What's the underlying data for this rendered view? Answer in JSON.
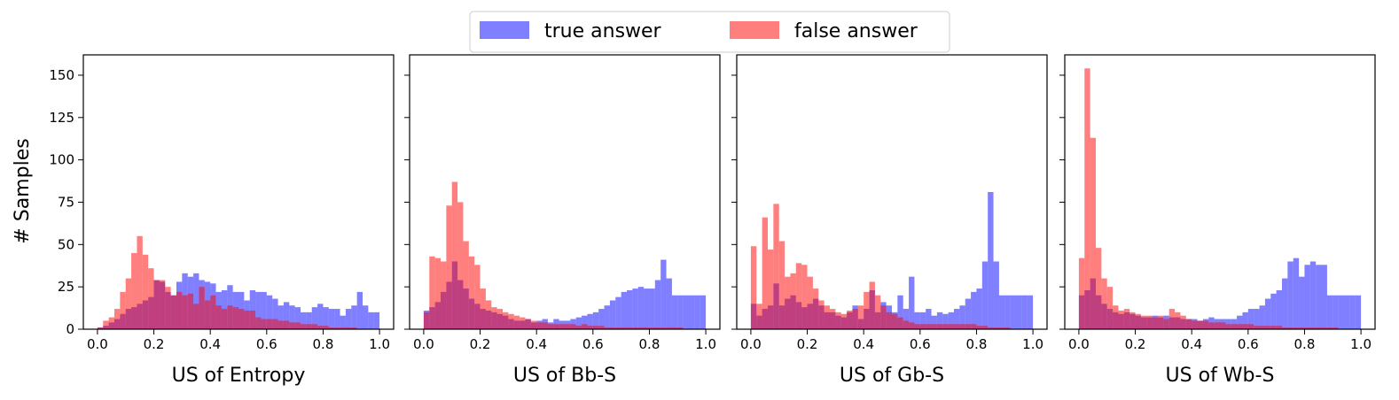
{
  "figure": {
    "ylabel": "# Samples",
    "legend": {
      "placement": "top-center",
      "entries": [
        {
          "label": "true answer",
          "color": "#7f7fff"
        },
        {
          "label": "false answer",
          "color": "#ff7f7f"
        }
      ]
    }
  },
  "chart_data": [
    {
      "type": "bar",
      "xlabel": "US of Entropy",
      "ylabel": "# Samples",
      "xlim": [
        -0.05,
        1.05
      ],
      "ylim": [
        0,
        162
      ],
      "xticks": [
        "0.0",
        "0.2",
        "0.4",
        "0.6",
        "0.8",
        "1.0"
      ],
      "yticks": [
        "0",
        "25",
        "50",
        "75",
        "100",
        "125",
        "150"
      ],
      "bin_start": 0.0,
      "bin_width": 0.02,
      "series": [
        {
          "name": "true answer",
          "color": "#0000ff",
          "opacity": 0.5,
          "values": [
            1,
            2,
            4,
            6,
            9,
            12,
            13,
            15,
            17,
            19,
            29,
            28,
            22,
            20,
            28,
            33,
            31,
            33,
            29,
            28,
            27,
            22,
            23,
            26,
            22,
            22,
            17,
            23,
            22,
            22,
            20,
            18,
            14,
            16,
            14,
            13,
            10,
            10,
            13,
            15,
            13,
            12,
            12,
            8,
            12,
            14,
            22,
            14,
            10,
            10
          ]
        },
        {
          "name": "false answer",
          "color": "#ff0000",
          "opacity": 0.5,
          "values": [
            1,
            5,
            7,
            12,
            22,
            30,
            45,
            55,
            44,
            36,
            29,
            29,
            25,
            20,
            22,
            20,
            21,
            15,
            25,
            17,
            20,
            14,
            12,
            14,
            13,
            12,
            11,
            11,
            7,
            6,
            6,
            6,
            5,
            5,
            4,
            4,
            3,
            3,
            3,
            2,
            2,
            1,
            1,
            1,
            1,
            1,
            0,
            0,
            0,
            0
          ]
        }
      ]
    },
    {
      "type": "bar",
      "xlabel": "US of Bb-S",
      "ylabel": "",
      "xlim": [
        -0.05,
        1.05
      ],
      "ylim": [
        0,
        162
      ],
      "xticks": [
        "0.0",
        "0.2",
        "0.4",
        "0.6",
        "0.8",
        "1.0"
      ],
      "yticks": [
        "0",
        "25",
        "50",
        "75",
        "100",
        "125",
        "150"
      ],
      "bin_start": 0.0,
      "bin_width": 0.02,
      "series": [
        {
          "name": "true answer",
          "color": "#0000ff",
          "opacity": 0.5,
          "values": [
            11,
            13,
            16,
            22,
            28,
            40,
            29,
            24,
            18,
            15,
            12,
            11,
            10,
            9,
            8,
            6,
            5,
            5,
            6,
            4,
            5,
            6,
            4,
            6,
            5,
            5,
            6,
            7,
            8,
            9,
            10,
            12,
            14,
            17,
            19,
            22,
            23,
            24,
            25,
            24,
            24,
            29,
            41,
            30,
            20,
            20,
            20,
            20,
            20,
            20
          ]
        },
        {
          "name": "false answer",
          "color": "#ff0000",
          "opacity": 0.5,
          "values": [
            10,
            43,
            42,
            40,
            73,
            87,
            75,
            52,
            43,
            38,
            24,
            17,
            13,
            12,
            10,
            9,
            8,
            7,
            6,
            5,
            4,
            4,
            3,
            3,
            3,
            3,
            3,
            2,
            3,
            2,
            2,
            2,
            1,
            1,
            1,
            1,
            1,
            1,
            1,
            1,
            1,
            1,
            1,
            1,
            1,
            1,
            0,
            0,
            0,
            0
          ]
        }
      ]
    },
    {
      "type": "bar",
      "xlabel": "US of Gb-S",
      "ylabel": "",
      "xlim": [
        -0.05,
        1.05
      ],
      "ylim": [
        0,
        162
      ],
      "xticks": [
        "0.0",
        "0.2",
        "0.4",
        "0.6",
        "0.8",
        "1.0"
      ],
      "yticks": [
        "0",
        "25",
        "50",
        "75",
        "100",
        "125",
        "150"
      ],
      "bin_start": 0.0,
      "bin_width": 0.02,
      "series": [
        {
          "name": "true answer",
          "color": "#0000ff",
          "opacity": 0.5,
          "values": [
            15,
            8,
            12,
            14,
            27,
            14,
            18,
            20,
            16,
            13,
            15,
            18,
            14,
            10,
            10,
            8,
            7,
            10,
            14,
            6,
            12,
            23,
            10,
            16,
            14,
            10,
            20,
            12,
            31,
            10,
            10,
            12,
            8,
            10,
            9,
            10,
            12,
            14,
            18,
            22,
            24,
            40,
            81,
            40,
            20,
            20,
            20,
            20,
            20,
            20
          ]
        },
        {
          "name": "false answer",
          "color": "#ff0000",
          "opacity": 0.5,
          "values": [
            49,
            15,
            66,
            47,
            74,
            52,
            31,
            33,
            39,
            38,
            31,
            24,
            17,
            14,
            12,
            10,
            9,
            11,
            12,
            14,
            22,
            28,
            20,
            14,
            10,
            9,
            7,
            5,
            4,
            3,
            3,
            3,
            3,
            3,
            3,
            3,
            3,
            3,
            3,
            3,
            2,
            2,
            1,
            1,
            1,
            1,
            0,
            0,
            0,
            0
          ]
        }
      ]
    },
    {
      "type": "bar",
      "xlabel": "US of Wb-S",
      "ylabel": "",
      "xlim": [
        -0.05,
        1.05
      ],
      "ylim": [
        0,
        162
      ],
      "xticks": [
        "0.0",
        "0.2",
        "0.4",
        "0.6",
        "0.8",
        "1.0"
      ],
      "yticks": [
        "0",
        "25",
        "50",
        "75",
        "100",
        "125",
        "150"
      ],
      "bin_start": 0.0,
      "bin_width": 0.02,
      "series": [
        {
          "name": "true answer",
          "color": "#0000ff",
          "opacity": 0.5,
          "values": [
            20,
            23,
            30,
            20,
            15,
            12,
            10,
            9,
            10,
            9,
            8,
            7,
            7,
            8,
            7,
            8,
            7,
            7,
            6,
            6,
            6,
            5,
            6,
            7,
            6,
            6,
            6,
            6,
            8,
            10,
            12,
            12,
            14,
            18,
            21,
            23,
            30,
            40,
            42,
            31,
            38,
            40,
            38,
            38,
            20,
            20,
            20,
            20,
            20,
            20
          ]
        },
        {
          "name": "false answer",
          "color": "#ff0000",
          "opacity": 0.5,
          "values": [
            42,
            154,
            113,
            48,
            30,
            25,
            14,
            11,
            12,
            10,
            9,
            8,
            8,
            7,
            8,
            6,
            12,
            10,
            8,
            6,
            5,
            5,
            5,
            4,
            4,
            4,
            3,
            3,
            3,
            3,
            3,
            2,
            2,
            2,
            2,
            2,
            1,
            1,
            1,
            1,
            1,
            1,
            1,
            1,
            1,
            1,
            0,
            0,
            0,
            0
          ]
        }
      ]
    }
  ]
}
